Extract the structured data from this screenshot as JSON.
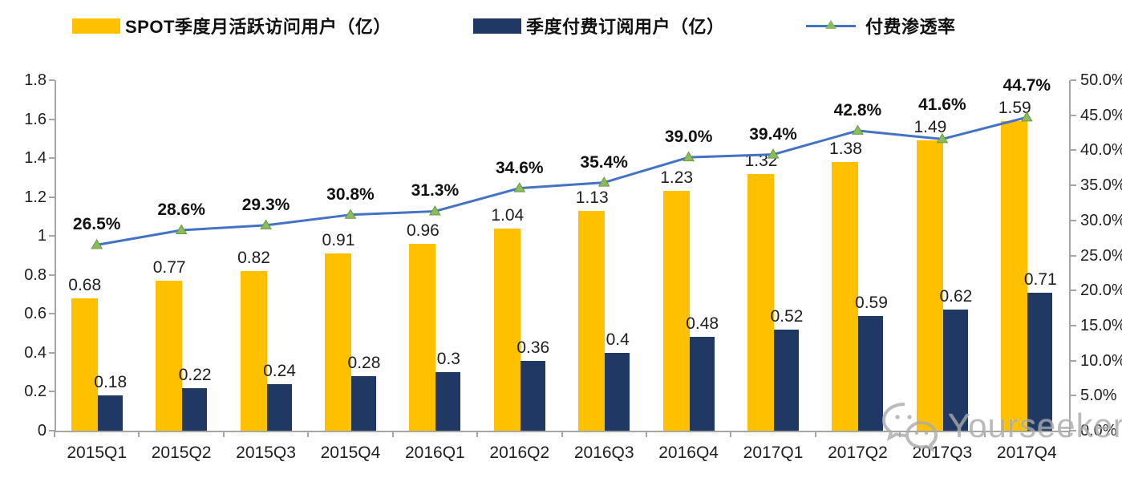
{
  "watermark": {
    "text": "Yourseeker",
    "icon": "wechat-chat-bubbles-icon"
  },
  "chart_data": {
    "type": "combo-bar-line",
    "title": "",
    "categories": [
      "2015Q1",
      "2015Q2",
      "2015Q3",
      "2015Q4",
      "2016Q1",
      "2016Q2",
      "2016Q3",
      "2016Q4",
      "2017Q1",
      "2017Q2",
      "2017Q3",
      "2017Q4"
    ],
    "series": [
      {
        "name": "SPOT季度月活跃访问用户（亿）",
        "type": "bar",
        "axis": "left",
        "color": "#FFC000",
        "values": [
          0.68,
          0.77,
          0.82,
          0.91,
          0.96,
          1.04,
          1.13,
          1.23,
          1.32,
          1.38,
          1.49,
          1.59
        ],
        "labels": [
          "0.68",
          "0.77",
          "0.82",
          "0.91",
          "0.96",
          "1.04",
          "1.13",
          "1.23",
          "1.32",
          "1.38",
          "1.49",
          "1.59"
        ]
      },
      {
        "name": "季度付费订阅用户（亿）",
        "type": "bar",
        "axis": "left",
        "color": "#1F3864",
        "values": [
          0.18,
          0.22,
          0.24,
          0.28,
          0.3,
          0.36,
          0.4,
          0.48,
          0.52,
          0.59,
          0.62,
          0.71
        ],
        "labels": [
          "0.18",
          "0.22",
          "0.24",
          "0.28",
          "0.3",
          "0.36",
          "0.4",
          "0.48",
          "0.52",
          "0.59",
          "0.62",
          "0.71"
        ]
      },
      {
        "name": "付费渗透率",
        "type": "line",
        "axis": "right",
        "color": "#4472C4",
        "marker": "triangle",
        "marker_fill": "#8CBB5E",
        "marker_stroke": "#6C9A42",
        "values": [
          26.5,
          28.6,
          29.3,
          30.8,
          31.3,
          34.6,
          35.4,
          39.0,
          39.4,
          42.8,
          41.6,
          44.7
        ],
        "labels": [
          "26.5%",
          "28.6%",
          "29.3%",
          "30.8%",
          "31.3%",
          "34.6%",
          "35.4%",
          "39.0%",
          "39.4%",
          "42.8%",
          "41.6%",
          "44.7%"
        ]
      }
    ],
    "left_axis": {
      "min": 0,
      "max": 1.8,
      "tick_labels": [
        "0",
        "0.2",
        "0.4",
        "0.6",
        "0.8",
        "1",
        "1.2",
        "1.4",
        "1.6",
        "1.8"
      ]
    },
    "right_axis": {
      "min": 0,
      "max": 50,
      "tick_labels": [
        "0.0%",
        "5.0%",
        "10.0%",
        "15.0%",
        "20.0%",
        "25.0%",
        "30.0%",
        "35.0%",
        "40.0%",
        "45.0%",
        "50.0%"
      ]
    },
    "grid": false,
    "legend_position": "top"
  }
}
